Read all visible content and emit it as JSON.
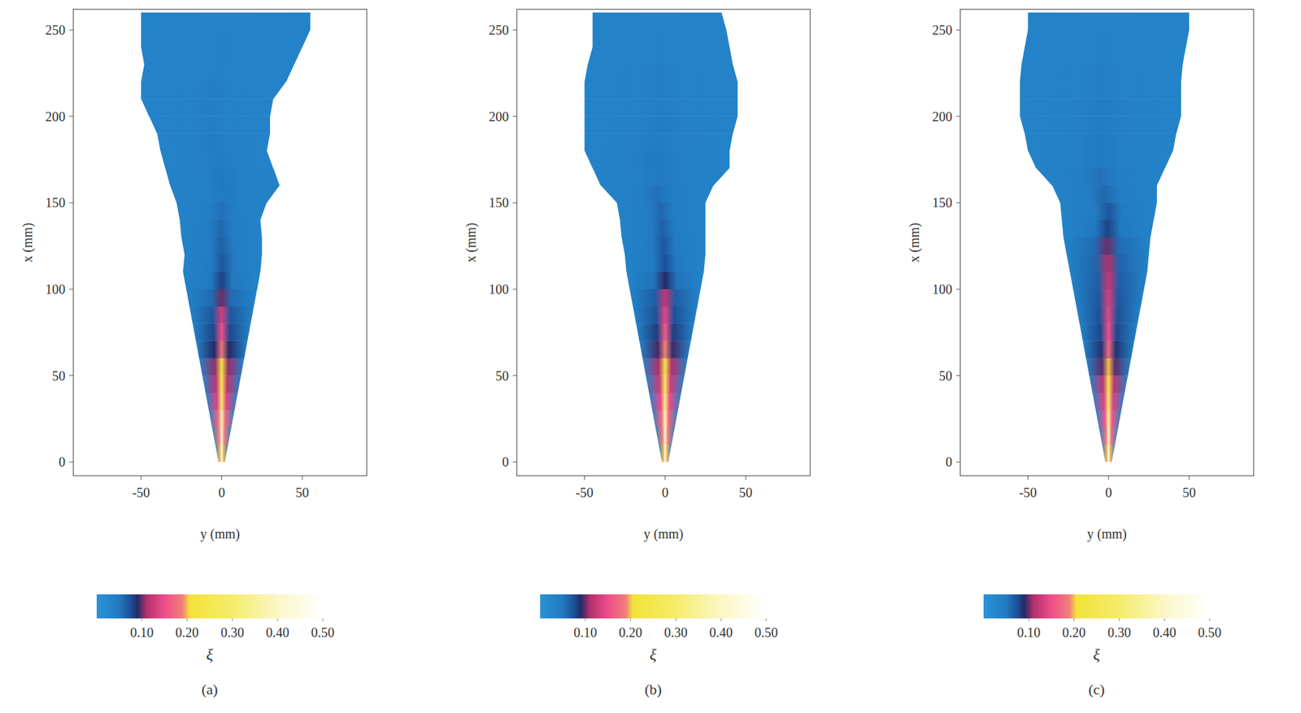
{
  "chart_data": [
    {
      "type": "heatmap",
      "panel_label": "(a)",
      "xlabel": "y (mm)",
      "ylabel": "x (mm)",
      "xlim": [
        -92,
        90
      ],
      "xticks": [
        -50,
        0,
        50
      ],
      "ylim": [
        -8,
        262
      ],
      "yticks": [
        0,
        50,
        100,
        150,
        200,
        250
      ],
      "stations": [
        0,
        10,
        20,
        30,
        40,
        50,
        60,
        70,
        80,
        90,
        100,
        110,
        120,
        130,
        140,
        150,
        160,
        170,
        180,
        190,
        200,
        210,
        220,
        230,
        240,
        250,
        260
      ],
      "y_left": [
        -2,
        -4,
        -6,
        -8,
        -10,
        -12,
        -14,
        -16,
        -18,
        -20,
        -22,
        -24,
        -23,
        -25,
        -26,
        -28,
        -32,
        -35,
        -38,
        -40,
        -45,
        -50,
        -50,
        -48,
        -50,
        -50,
        -50
      ],
      "y_right": [
        2,
        4,
        6,
        8,
        10,
        12,
        14,
        16,
        18,
        20,
        22,
        24,
        25,
        25,
        24,
        28,
        36,
        32,
        28,
        30,
        30,
        32,
        40,
        45,
        50,
        55,
        55
      ],
      "xi_center": [
        0.45,
        0.42,
        0.38,
        0.3,
        0.25,
        0.22,
        0.18,
        0.15,
        0.13,
        0.1,
        0.08,
        0.07,
        0.065,
        0.06,
        0.055,
        0.05,
        0.05,
        0.045,
        0.045,
        0.04,
        0.04,
        0.04,
        0.035,
        0.035,
        0.035,
        0.03,
        0.03
      ],
      "colorbar": {
        "label": "ξ",
        "range": [
          0,
          0.5
        ],
        "ticks": [
          {
            "value": 0.1,
            "label": "0.10"
          },
          {
            "value": 0.2,
            "label": "0.20"
          },
          {
            "value": 0.3,
            "label": "0.30"
          },
          {
            "value": 0.4,
            "label": "0.40"
          },
          {
            "value": 0.5,
            "label": "0.50"
          }
        ]
      }
    },
    {
      "type": "heatmap",
      "panel_label": "(b)",
      "xlabel": "y (mm)",
      "ylabel": "x (mm)",
      "xlim": [
        -92,
        90
      ],
      "xticks": [
        -50,
        0,
        50
      ],
      "ylim": [
        -8,
        262
      ],
      "yticks": [
        0,
        50,
        100,
        150,
        200,
        250
      ],
      "stations": [
        0,
        10,
        20,
        30,
        40,
        50,
        60,
        70,
        80,
        90,
        100,
        110,
        120,
        130,
        140,
        150,
        160,
        170,
        180,
        190,
        200,
        210,
        220,
        230,
        240,
        250,
        260
      ],
      "y_left": [
        -2,
        -4,
        -6,
        -8,
        -10,
        -12,
        -14,
        -16,
        -18,
        -20,
        -22,
        -24,
        -25,
        -27,
        -28,
        -30,
        -40,
        -45,
        -50,
        -50,
        -50,
        -50,
        -50,
        -48,
        -45,
        -45,
        -45
      ],
      "y_right": [
        2,
        4,
        6,
        8,
        10,
        12,
        14,
        16,
        18,
        20,
        22,
        24,
        25,
        25,
        25,
        25,
        30,
        40,
        40,
        42,
        45,
        45,
        45,
        42,
        40,
        38,
        35
      ],
      "xi_center": [
        0.45,
        0.42,
        0.38,
        0.32,
        0.27,
        0.23,
        0.19,
        0.16,
        0.14,
        0.12,
        0.09,
        0.075,
        0.07,
        0.065,
        0.06,
        0.055,
        0.05,
        0.05,
        0.045,
        0.045,
        0.04,
        0.04,
        0.04,
        0.035,
        0.035,
        0.03,
        0.03
      ],
      "colorbar": {
        "label": "ξ",
        "range": [
          0,
          0.5
        ],
        "ticks": [
          {
            "value": 0.1,
            "label": "0.10"
          },
          {
            "value": 0.2,
            "label": "0.20"
          },
          {
            "value": 0.3,
            "label": "0.30"
          },
          {
            "value": 0.4,
            "label": "0.40"
          },
          {
            "value": 0.5,
            "label": "0.50"
          }
        ]
      }
    },
    {
      "type": "heatmap",
      "panel_label": "(c)",
      "xlabel": "y (mm)",
      "ylabel": "x (mm)",
      "xlim": [
        -92,
        90
      ],
      "xticks": [
        -50,
        0,
        50
      ],
      "ylim": [
        -8,
        262
      ],
      "yticks": [
        0,
        50,
        100,
        150,
        200,
        250
      ],
      "stations": [
        0,
        10,
        20,
        30,
        40,
        50,
        60,
        70,
        80,
        90,
        100,
        110,
        120,
        130,
        140,
        150,
        160,
        170,
        180,
        190,
        200,
        210,
        220,
        230,
        240,
        250,
        260
      ],
      "y_left": [
        -2,
        -4,
        -6,
        -8,
        -10,
        -12,
        -14,
        -16,
        -18,
        -20,
        -22,
        -24,
        -26,
        -28,
        -29,
        -30,
        -35,
        -45,
        -50,
        -52,
        -55,
        -55,
        -55,
        -54,
        -52,
        -50,
        -50
      ],
      "y_right": [
        2,
        4,
        6,
        8,
        10,
        12,
        14,
        16,
        18,
        20,
        22,
        24,
        25,
        26,
        28,
        30,
        30,
        35,
        40,
        42,
        45,
        45,
        45,
        46,
        48,
        50,
        50
      ],
      "xi_center": [
        0.45,
        0.4,
        0.35,
        0.3,
        0.25,
        0.2,
        0.17,
        0.15,
        0.14,
        0.13,
        0.12,
        0.11,
        0.1,
        0.08,
        0.07,
        0.06,
        0.055,
        0.05,
        0.05,
        0.045,
        0.045,
        0.04,
        0.04,
        0.035,
        0.035,
        0.03,
        0.03
      ],
      "colorbar": {
        "label": "ξ",
        "range": [
          0,
          0.5
        ],
        "ticks": [
          {
            "value": 0.1,
            "label": "0.10"
          },
          {
            "value": 0.2,
            "label": "0.20"
          },
          {
            "value": 0.3,
            "label": "0.30"
          },
          {
            "value": 0.4,
            "label": "0.40"
          },
          {
            "value": 0.5,
            "label": "0.50"
          }
        ]
      }
    }
  ]
}
